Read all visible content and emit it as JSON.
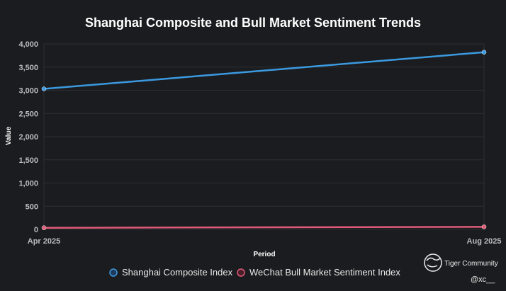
{
  "chart_data": {
    "type": "line",
    "title": "Shanghai Composite and Bull Market Sentiment Trends",
    "xlabel": "Period",
    "ylabel": "Value",
    "categories": [
      "Apr 2025",
      "Aug 2025"
    ],
    "ylim": [
      0,
      4000
    ],
    "yticks": [
      0,
      500,
      1000,
      1500,
      2000,
      2500,
      3000,
      3500,
      4000
    ],
    "ytick_labels": [
      "0",
      "500",
      "1,000",
      "1,500",
      "2,000",
      "2,500",
      "3,000",
      "3,500",
      "4,000"
    ],
    "grid": true,
    "legend_position": "bottom-center",
    "series": [
      {
        "name": "Shanghai Composite Index",
        "values": [
          3030,
          3820
        ],
        "color": "#3b9ae1"
      },
      {
        "name": "WeChat Bull Market Sentiment Index",
        "values": [
          35,
          55
        ],
        "color": "#e05a78"
      }
    ]
  },
  "watermark": {
    "brand": "Tiger Community",
    "handle": "@xc__",
    "icon": "tiger-logo-icon"
  },
  "colors": {
    "background": "#1b1c1f",
    "grid": "#2c2e33"
  }
}
